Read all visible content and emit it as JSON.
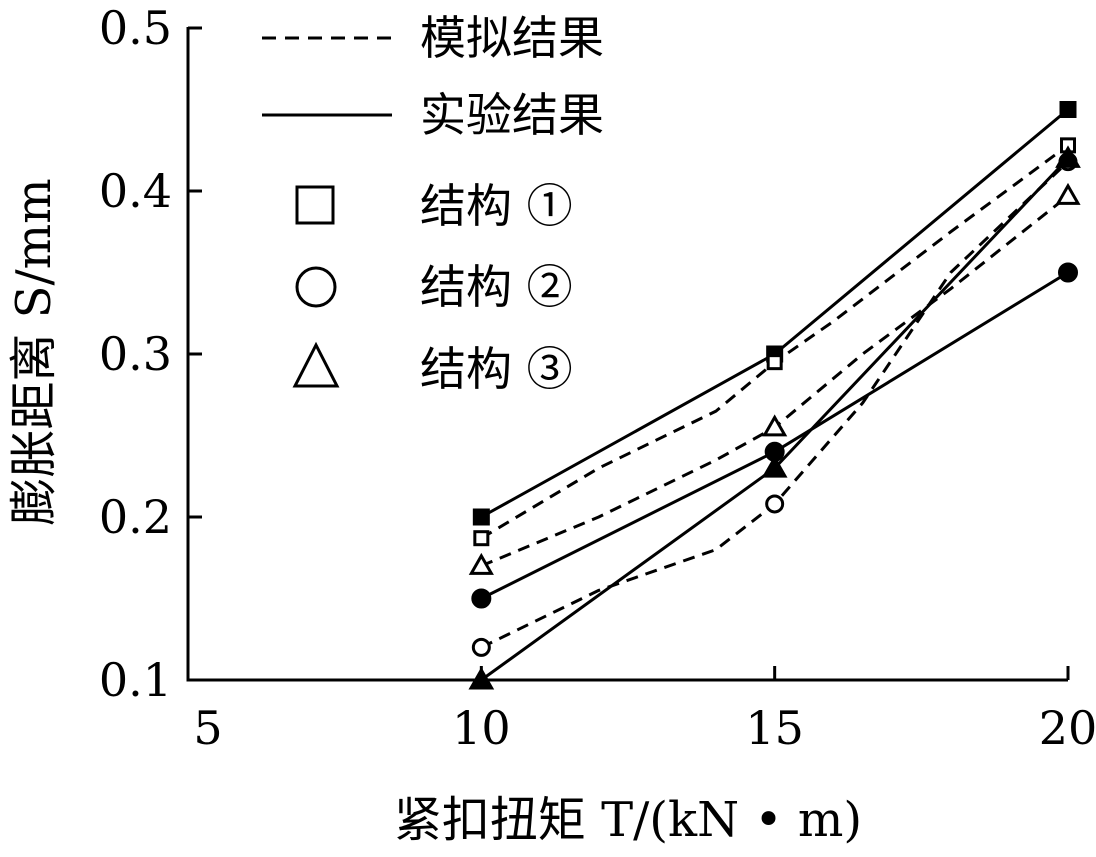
{
  "chart_data": {
    "type": "line",
    "xlabel": "紧扣扭矩 T/(kN • m)",
    "ylabel": "膨胀距离 S/mm",
    "xlim": [
      5,
      20
    ],
    "ylim": [
      0.1,
      0.5
    ],
    "x_ticks": [
      "5",
      "10",
      "15",
      "20"
    ],
    "y_ticks": [
      "0.1",
      "0.2",
      "0.3",
      "0.4",
      "0.5"
    ],
    "grid": false,
    "legend_position": "top-left",
    "legend": {
      "simulated": "模拟结果",
      "experimental": "实验结果",
      "structure_1": "结构 ①",
      "structure_2": "结构 ②",
      "structure_3": "结构 ③"
    },
    "series": [
      {
        "structure": 1,
        "method": "experimental",
        "marker": "square",
        "x": [
          10,
          15,
          20
        ],
        "y": [
          0.2,
          0.3,
          0.45
        ]
      },
      {
        "structure": 1,
        "method": "simulated",
        "marker": "square",
        "x": [
          10,
          12,
          14,
          15,
          16,
          18,
          20
        ],
        "y": [
          0.187,
          0.23,
          0.265,
          0.295,
          0.32,
          0.375,
          0.428
        ]
      },
      {
        "structure": 2,
        "method": "experimental",
        "marker": "circle",
        "x": [
          10,
          15,
          20
        ],
        "y": [
          0.15,
          0.24,
          0.35
        ]
      },
      {
        "structure": 2,
        "method": "simulated",
        "marker": "circle",
        "x": [
          10,
          12,
          14,
          15,
          16.5,
          18,
          20
        ],
        "y": [
          0.12,
          0.155,
          0.18,
          0.208,
          0.27,
          0.35,
          0.418
        ]
      },
      {
        "structure": 3,
        "method": "experimental",
        "marker": "triangle",
        "x": [
          10,
          15,
          20
        ],
        "y": [
          0.1,
          0.23,
          0.42
        ]
      },
      {
        "structure": 3,
        "method": "simulated",
        "marker": "triangle",
        "x": [
          10,
          12,
          14,
          15,
          16.5,
          18,
          20
        ],
        "y": [
          0.17,
          0.2,
          0.235,
          0.255,
          0.3,
          0.34,
          0.397
        ]
      }
    ]
  }
}
